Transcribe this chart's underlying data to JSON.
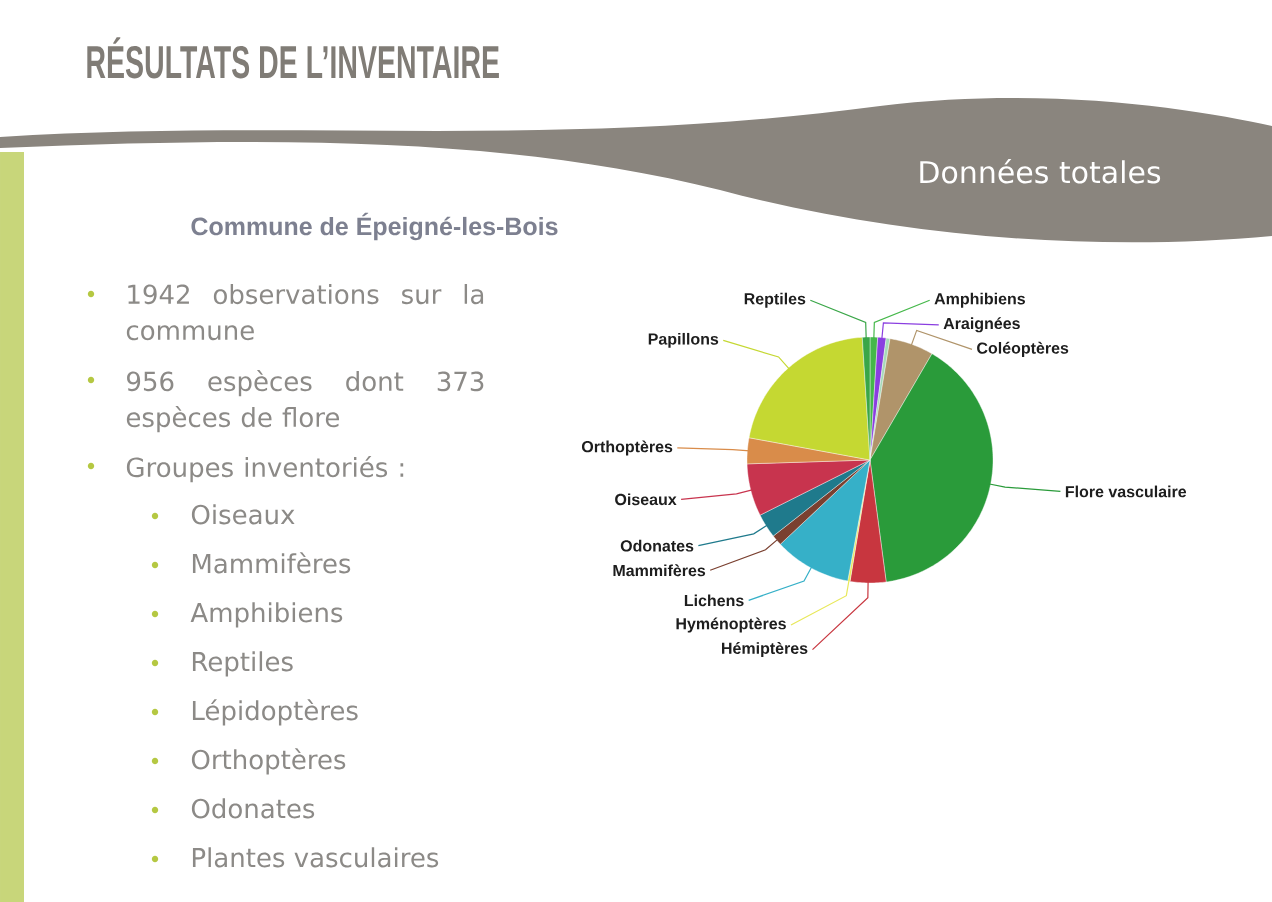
{
  "chart_data": {
    "type": "pie",
    "title": "RÉSULTATS DE L’INVENTAIRE",
    "subtitle": "Données totales",
    "categories": [
      "Amphibiens",
      "Araignées",
      null,
      "Coléoptères",
      "Flore vasculaire",
      "Hémiptères",
      "Hyménoptères",
      "Lichens",
      "Mammifères",
      "Odonates",
      "Oiseaux",
      "Orthoptères",
      "Papillons",
      "Reptiles"
    ],
    "values": [
      1.0,
      1.1,
      0.5,
      5.8,
      39.5,
      4.7,
      0.3,
      10.1,
      1.4,
      3.2,
      6.9,
      3.4,
      21.1,
      1.0
    ],
    "colors": [
      "#45b84a",
      "#8a3ee0",
      "#a6d9b8",
      "#b0946a",
      "#2a9b3a",
      "#c8363f",
      "#e8e85a",
      "#36b0c8",
      "#7a4030",
      "#1f7a8c",
      "#c8344e",
      "#d98c4a",
      "#c5d832",
      "#3aa648"
    ],
    "annotations": [
      "Commune de Épeigné-les-Bois",
      "1942 observations sur la commune",
      "956 espèces dont 373 espèces de flore",
      "Groupes inventoriés :",
      "Oiseaux",
      "Mammifères",
      "Amphibiens",
      "Reptiles",
      "Lépidoptères",
      "Orthoptères",
      "Odonates",
      "Plantes vasculaires"
    ]
  }
}
